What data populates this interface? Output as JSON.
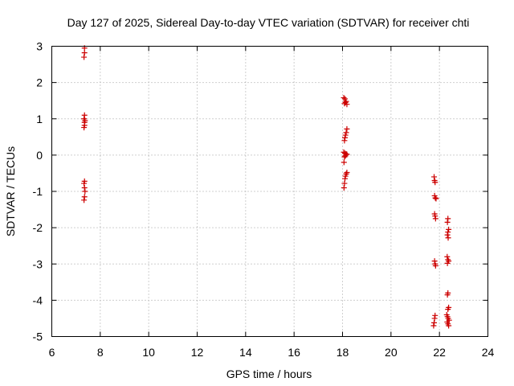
{
  "chart_data": {
    "type": "scatter",
    "title": "Day 127 of 2025, Sidereal Day-to-day VTEC variation (SDTVAR) for receiver chti",
    "xlabel": "GPS time / hours",
    "ylabel": "SDTVAR / TECUs",
    "xlim": [
      6,
      24
    ],
    "ylim": [
      -5,
      3
    ],
    "xticks": [
      6,
      8,
      10,
      12,
      14,
      16,
      18,
      20,
      22,
      24
    ],
    "yticks": [
      -5,
      -4,
      -3,
      -2,
      -1,
      0,
      1,
      2,
      3
    ],
    "grid": true,
    "marker": "+",
    "series": [
      {
        "name": "SDTVAR",
        "color": "#cc0000",
        "points": [
          [
            7.35,
            2.95
          ],
          [
            7.35,
            2.82
          ],
          [
            7.33,
            2.7
          ],
          [
            7.35,
            1.1
          ],
          [
            7.33,
            1.0
          ],
          [
            7.37,
            0.95
          ],
          [
            7.35,
            0.9
          ],
          [
            7.35,
            0.82
          ],
          [
            7.33,
            0.76
          ],
          [
            7.35,
            -0.72
          ],
          [
            7.33,
            -0.78
          ],
          [
            7.35,
            -0.9
          ],
          [
            7.37,
            -1.0
          ],
          [
            7.35,
            -1.15
          ],
          [
            7.33,
            -1.24
          ],
          [
            18.05,
            1.58
          ],
          [
            18.1,
            1.55
          ],
          [
            18.15,
            1.48
          ],
          [
            18.08,
            1.42
          ],
          [
            18.18,
            1.4
          ],
          [
            18.12,
            1.45
          ],
          [
            18.18,
            0.72
          ],
          [
            18.15,
            0.62
          ],
          [
            18.12,
            0.55
          ],
          [
            18.1,
            0.48
          ],
          [
            18.08,
            0.4
          ],
          [
            18.05,
            0.08
          ],
          [
            18.1,
            0.05
          ],
          [
            18.15,
            0.03
          ],
          [
            18.18,
            0.02
          ],
          [
            18.12,
            -0.02
          ],
          [
            18.08,
            -0.05
          ],
          [
            18.06,
            -0.2
          ],
          [
            18.18,
            -0.48
          ],
          [
            18.15,
            -0.52
          ],
          [
            18.12,
            -0.58
          ],
          [
            18.1,
            -0.65
          ],
          [
            18.08,
            -0.78
          ],
          [
            18.06,
            -0.9
          ],
          [
            21.78,
            -0.6
          ],
          [
            21.8,
            -0.7
          ],
          [
            21.82,
            -0.75
          ],
          [
            21.8,
            -1.12
          ],
          [
            21.83,
            -1.18
          ],
          [
            21.86,
            -1.2
          ],
          [
            21.8,
            -1.62
          ],
          [
            21.82,
            -1.68
          ],
          [
            21.84,
            -1.75
          ],
          [
            21.8,
            -2.92
          ],
          [
            21.82,
            -3.0
          ],
          [
            21.84,
            -3.05
          ],
          [
            21.82,
            -4.42
          ],
          [
            21.8,
            -4.5
          ],
          [
            21.78,
            -4.62
          ],
          [
            21.76,
            -4.7
          ],
          [
            22.35,
            -1.75
          ],
          [
            22.33,
            -1.85
          ],
          [
            22.38,
            -2.05
          ],
          [
            22.35,
            -2.12
          ],
          [
            22.33,
            -2.2
          ],
          [
            22.36,
            -2.28
          ],
          [
            22.32,
            -2.8
          ],
          [
            22.35,
            -2.88
          ],
          [
            22.38,
            -2.92
          ],
          [
            22.33,
            -2.98
          ],
          [
            22.35,
            -3.8
          ],
          [
            22.33,
            -3.85
          ],
          [
            22.38,
            -4.2
          ],
          [
            22.35,
            -4.25
          ],
          [
            22.3,
            -4.4
          ],
          [
            22.33,
            -4.45
          ],
          [
            22.36,
            -4.5
          ],
          [
            22.4,
            -4.55
          ],
          [
            22.32,
            -4.6
          ],
          [
            22.35,
            -4.65
          ],
          [
            22.38,
            -4.7
          ]
        ]
      }
    ]
  }
}
